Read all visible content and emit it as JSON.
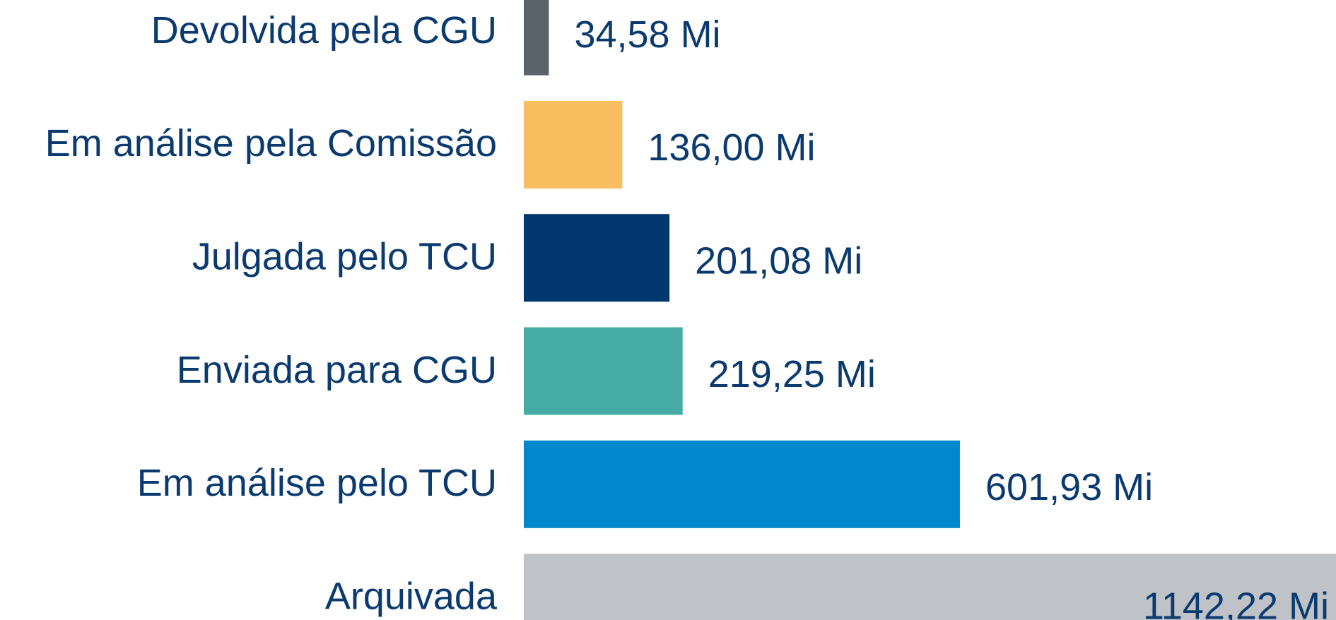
{
  "chart_data": {
    "type": "bar",
    "orientation": "horizontal",
    "categories": [
      "Devolvida pela CGU",
      "Em análise pela Comissão",
      "Julgada pelo TCU",
      "Enviada para CGU",
      "Em análise pelo TCU",
      "Arquivada"
    ],
    "values": [
      34.58,
      136.0,
      201.08,
      219.25,
      601.93,
      1142.22
    ],
    "value_labels": [
      "34,58 Mi",
      "136,00 Mi",
      "201,08 Mi",
      "219,25 Mi",
      "601,93 Mi",
      "1142,22 Mi"
    ],
    "colors": [
      "#5a636b",
      "#f9be5f",
      "#00376f",
      "#47aca5",
      "#0088cc",
      "#bfc2c6"
    ]
  }
}
